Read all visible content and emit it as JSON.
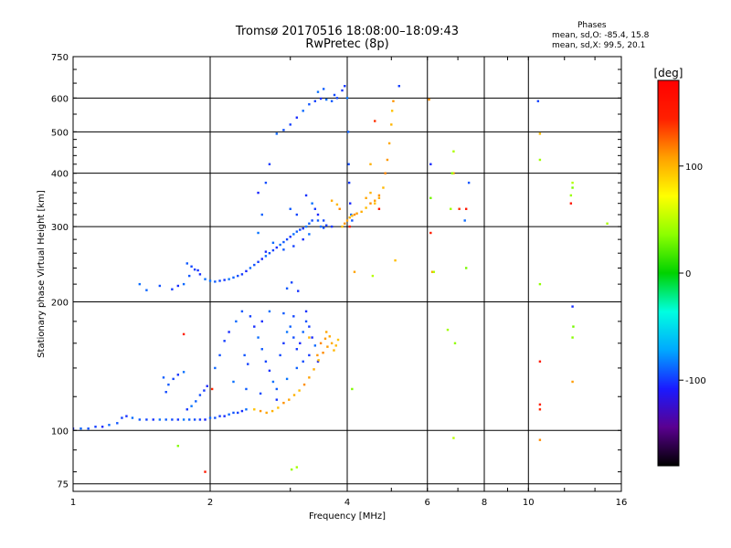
{
  "header": {
    "title_line1": "Tromsø 20170516 18:08:00–18:09:43",
    "title_line2": "RwPretec (8p)"
  },
  "phases_box": {
    "title": "Phases",
    "line_o": "mean, sd,O: -85.4, 15.8",
    "line_x": "mean, sd,X:  99.5, 20.1"
  },
  "colorbar": {
    "unit": "[deg]",
    "ticks": [
      "100",
      "0",
      "-100"
    ],
    "tick_values": [
      100,
      0,
      -100
    ],
    "range": [
      -180,
      180
    ],
    "colors": [
      "#000000",
      "#5a0090",
      "#1a1aff",
      "#00a8ff",
      "#00ffe0",
      "#00d200",
      "#8cff00",
      "#ffff00",
      "#ffa000",
      "#ff2000",
      "#ff0000"
    ]
  },
  "chart_data": {
    "type": "scatter",
    "title": "Tromsø 20170516 18:08:00–18:09:43",
    "subtitle": "RwPretec (8p)",
    "xlabel": "Frequency [MHz]",
    "ylabel": "Stationary phase Virtual Height [km]",
    "x_scale": "log",
    "y_scale": "log",
    "xlim": [
      1,
      16
    ],
    "ylim": [
      72,
      750
    ],
    "x_ticks": [
      1,
      2,
      4,
      6,
      8,
      10,
      16
    ],
    "x_tick_labels": [
      "1",
      "2",
      "4",
      "6",
      "8",
      "10",
      "16"
    ],
    "y_ticks": [
      75,
      100,
      200,
      300,
      400,
      500,
      600,
      750
    ],
    "y_tick_labels": [
      "75",
      "100",
      "200",
      "300",
      "400",
      "500",
      "600",
      "750"
    ],
    "grid": true,
    "series": [
      {
        "mode": "O",
        "phase": -95,
        "points": [
          [
            1.0,
            101
          ],
          [
            1.04,
            101
          ],
          [
            1.08,
            101
          ],
          [
            1.12,
            102
          ],
          [
            1.16,
            102
          ],
          [
            1.2,
            103
          ],
          [
            1.25,
            104
          ],
          [
            1.28,
            107
          ],
          [
            1.31,
            108
          ],
          [
            1.35,
            107
          ],
          [
            1.4,
            106
          ],
          [
            1.45,
            106
          ],
          [
            1.5,
            106
          ],
          [
            1.55,
            106
          ],
          [
            1.6,
            106
          ],
          [
            1.65,
            106
          ],
          [
            1.7,
            106
          ],
          [
            1.75,
            106
          ],
          [
            1.8,
            106
          ],
          [
            1.85,
            106
          ],
          [
            1.9,
            106
          ],
          [
            1.95,
            106
          ],
          [
            2.0,
            107
          ],
          [
            2.05,
            107
          ],
          [
            2.1,
            108
          ],
          [
            2.15,
            108
          ],
          [
            2.2,
            109
          ],
          [
            2.25,
            110
          ],
          [
            2.3,
            110
          ],
          [
            2.35,
            111
          ],
          [
            2.4,
            112
          ],
          [
            1.62,
            128
          ],
          [
            1.66,
            132
          ],
          [
            1.7,
            135
          ],
          [
            1.75,
            137
          ],
          [
            1.58,
            133
          ],
          [
            1.6,
            123
          ],
          [
            1.78,
            112
          ],
          [
            1.82,
            114
          ],
          [
            1.86,
            117
          ],
          [
            1.9,
            121
          ],
          [
            1.94,
            124
          ],
          [
            1.97,
            127
          ],
          [
            2.05,
            140
          ],
          [
            2.1,
            150
          ],
          [
            2.15,
            162
          ],
          [
            2.2,
            170
          ],
          [
            2.28,
            180
          ],
          [
            2.35,
            190
          ],
          [
            2.45,
            185
          ],
          [
            2.5,
            175
          ],
          [
            2.55,
            165
          ],
          [
            2.6,
            155
          ],
          [
            2.65,
            145
          ],
          [
            2.7,
            138
          ],
          [
            2.75,
            130
          ],
          [
            2.8,
            125
          ],
          [
            2.85,
            150
          ],
          [
            2.9,
            160
          ],
          [
            2.95,
            170
          ],
          [
            3.0,
            175
          ],
          [
            3.05,
            165
          ],
          [
            3.1,
            155
          ],
          [
            3.15,
            160
          ],
          [
            3.2,
            170
          ],
          [
            3.25,
            180
          ],
          [
            3.3,
            175
          ],
          [
            3.35,
            165
          ],
          [
            3.4,
            158
          ],
          [
            2.38,
            150
          ],
          [
            2.42,
            143
          ],
          [
            2.6,
            180
          ],
          [
            2.7,
            190
          ],
          [
            2.9,
            188
          ],
          [
            3.05,
            185
          ],
          [
            3.25,
            190
          ],
          [
            2.25,
            130
          ],
          [
            2.4,
            125
          ],
          [
            2.58,
            122
          ],
          [
            2.8,
            118
          ],
          [
            2.95,
            132
          ],
          [
            3.1,
            140
          ],
          [
            3.2,
            145
          ],
          [
            3.3,
            150
          ],
          [
            3.45,
            145
          ],
          [
            1.45,
            213
          ],
          [
            1.55,
            218
          ],
          [
            1.65,
            214
          ],
          [
            1.7,
            218
          ],
          [
            1.75,
            220
          ],
          [
            1.8,
            230
          ],
          [
            1.85,
            238
          ],
          [
            1.9,
            232
          ],
          [
            1.95,
            226
          ],
          [
            1.78,
            246
          ],
          [
            1.82,
            242
          ],
          [
            1.88,
            237
          ],
          [
            2.0,
            224
          ],
          [
            2.05,
            223
          ],
          [
            2.1,
            224
          ],
          [
            2.15,
            225
          ],
          [
            2.2,
            226
          ],
          [
            2.25,
            228
          ],
          [
            2.3,
            230
          ],
          [
            2.35,
            232
          ],
          [
            2.4,
            236
          ],
          [
            2.45,
            240
          ],
          [
            2.5,
            244
          ],
          [
            2.55,
            248
          ],
          [
            2.6,
            252
          ],
          [
            2.65,
            256
          ],
          [
            2.7,
            260
          ],
          [
            2.75,
            264
          ],
          [
            2.8,
            268
          ],
          [
            2.85,
            272
          ],
          [
            2.9,
            276
          ],
          [
            2.95,
            280
          ],
          [
            3.0,
            284
          ],
          [
            3.05,
            288
          ],
          [
            3.1,
            292
          ],
          [
            3.15,
            295
          ],
          [
            3.2,
            297
          ],
          [
            3.25,
            300
          ],
          [
            3.3,
            305
          ],
          [
            3.35,
            310
          ],
          [
            3.4,
            330
          ],
          [
            3.45,
            320
          ],
          [
            3.5,
            300
          ],
          [
            3.55,
            298
          ],
          [
            3.6,
            302
          ],
          [
            2.65,
            262
          ],
          [
            2.75,
            275
          ],
          [
            2.9,
            265
          ],
          [
            3.05,
            270
          ],
          [
            3.2,
            280
          ],
          [
            3.3,
            288
          ],
          [
            3.0,
            330
          ],
          [
            3.1,
            320
          ],
          [
            3.25,
            355
          ],
          [
            3.35,
            340
          ],
          [
            3.45,
            310
          ],
          [
            3.55,
            310
          ],
          [
            3.7,
            300
          ],
          [
            2.55,
            290
          ],
          [
            2.6,
            320
          ],
          [
            2.65,
            380
          ],
          [
            2.7,
            420
          ],
          [
            2.55,
            360
          ],
          [
            2.8,
            495
          ],
          [
            2.9,
            505
          ],
          [
            3.0,
            520
          ],
          [
            3.1,
            540
          ],
          [
            3.2,
            560
          ],
          [
            3.3,
            580
          ],
          [
            3.4,
            590
          ],
          [
            3.5,
            598
          ],
          [
            3.6,
            595
          ],
          [
            3.7,
            590
          ],
          [
            3.8,
            600
          ],
          [
            3.9,
            625
          ],
          [
            3.45,
            620
          ],
          [
            3.55,
            630
          ],
          [
            3.75,
            610
          ],
          [
            3.95,
            640
          ],
          [
            4.0,
            600
          ],
          [
            4.02,
            500
          ],
          [
            4.03,
            420
          ],
          [
            4.04,
            380
          ],
          [
            4.06,
            340
          ],
          [
            4.08,
            320
          ],
          [
            4.1,
            310
          ],
          [
            5.2,
            640
          ],
          [
            6.1,
            420
          ],
          [
            7.25,
            310
          ],
          [
            7.4,
            380
          ],
          [
            10.5,
            590
          ],
          [
            12.5,
            195
          ],
          [
            1.4,
            220
          ],
          [
            2.95,
            215
          ],
          [
            3.02,
            222
          ],
          [
            3.12,
            212
          ]
        ]
      },
      {
        "mode": "X",
        "phase": 105,
        "points": [
          [
            2.5,
            112
          ],
          [
            2.58,
            111
          ],
          [
            2.66,
            110
          ],
          [
            2.74,
            111
          ],
          [
            2.82,
            113
          ],
          [
            2.9,
            116
          ],
          [
            2.98,
            118
          ],
          [
            3.06,
            121
          ],
          [
            3.14,
            124
          ],
          [
            3.22,
            128
          ],
          [
            3.3,
            133
          ],
          [
            3.38,
            139
          ],
          [
            3.46,
            146
          ],
          [
            3.54,
            152
          ],
          [
            3.62,
            157
          ],
          [
            3.7,
            160
          ],
          [
            3.78,
            158
          ],
          [
            3.5,
            160
          ],
          [
            3.58,
            164
          ],
          [
            3.66,
            166
          ],
          [
            3.74,
            154
          ],
          [
            3.82,
            163
          ],
          [
            3.44,
            150
          ],
          [
            3.6,
            170
          ],
          [
            3.3,
            165
          ],
          [
            3.9,
            300
          ],
          [
            3.95,
            305
          ],
          [
            4.0,
            310
          ],
          [
            4.05,
            315
          ],
          [
            4.1,
            318
          ],
          [
            4.15,
            320
          ],
          [
            4.2,
            322
          ],
          [
            4.3,
            325
          ],
          [
            4.4,
            332
          ],
          [
            4.5,
            340
          ],
          [
            4.6,
            345
          ],
          [
            4.7,
            350
          ],
          [
            4.8,
            370
          ],
          [
            4.85,
            400
          ],
          [
            4.9,
            430
          ],
          [
            4.95,
            470
          ],
          [
            5.0,
            520
          ],
          [
            5.02,
            560
          ],
          [
            5.05,
            590
          ],
          [
            4.4,
            350
          ],
          [
            4.5,
            360
          ],
          [
            4.6,
            340
          ],
          [
            4.7,
            355
          ],
          [
            4.15,
            235
          ],
          [
            4.5,
            420
          ],
          [
            5.1,
            250
          ],
          [
            6.05,
            595
          ],
          [
            6.15,
            235
          ],
          [
            6.85,
            400
          ],
          [
            10.6,
            495
          ],
          [
            10.6,
            95
          ],
          [
            12.5,
            130
          ],
          [
            3.7,
            345
          ],
          [
            3.8,
            338
          ],
          [
            3.85,
            330
          ]
        ]
      },
      {
        "mode": "other",
        "phase": 150,
        "points": [
          [
            4.6,
            530
          ],
          [
            4.7,
            330
          ],
          [
            4.05,
            300
          ],
          [
            6.1,
            290
          ],
          [
            7.05,
            330
          ],
          [
            7.3,
            330
          ],
          [
            10.6,
            145
          ],
          [
            10.6,
            115
          ],
          [
            10.6,
            112
          ],
          [
            12.4,
            340
          ],
          [
            1.95,
            80
          ],
          [
            1.75,
            168
          ],
          [
            2.02,
            125
          ]
        ]
      },
      {
        "mode": "other",
        "phase": 40,
        "points": [
          [
            6.1,
            350
          ],
          [
            6.85,
            450
          ],
          [
            6.75,
            330
          ],
          [
            6.8,
            400
          ],
          [
            7.3,
            240
          ],
          [
            6.2,
            235
          ],
          [
            10.6,
            430
          ],
          [
            10.6,
            220
          ],
          [
            12.5,
            370
          ],
          [
            12.5,
            380
          ],
          [
            6.65,
            172
          ],
          [
            6.9,
            160
          ],
          [
            4.1,
            125
          ],
          [
            4.55,
            230
          ],
          [
            3.1,
            82
          ],
          [
            3.02,
            81
          ],
          [
            1.7,
            92
          ],
          [
            6.85,
            96
          ],
          [
            14.9,
            305
          ],
          [
            12.4,
            355
          ],
          [
            12.5,
            165
          ],
          [
            12.55,
            175
          ]
        ]
      }
    ]
  }
}
